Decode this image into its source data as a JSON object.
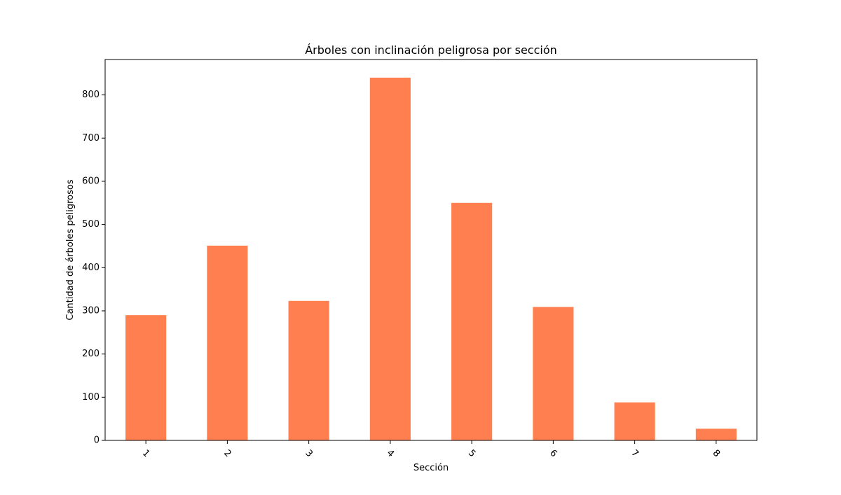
{
  "chart_data": {
    "type": "bar",
    "title": "Árboles con inclinación peligrosa por sección",
    "xlabel": "Sección",
    "ylabel": "Cantidad de árboles peligrosos",
    "categories": [
      "1",
      "2",
      "3",
      "4",
      "5",
      "6",
      "7",
      "8"
    ],
    "values": [
      290,
      451,
      323,
      840,
      550,
      309,
      88,
      27
    ],
    "ylim": [
      0,
      882
    ],
    "yticks": [
      0,
      100,
      200,
      300,
      400,
      500,
      600,
      700,
      800
    ],
    "x_tick_rotation": "45 degrees",
    "bar_color": "#ff7f50",
    "grid": false,
    "legend": "none"
  }
}
